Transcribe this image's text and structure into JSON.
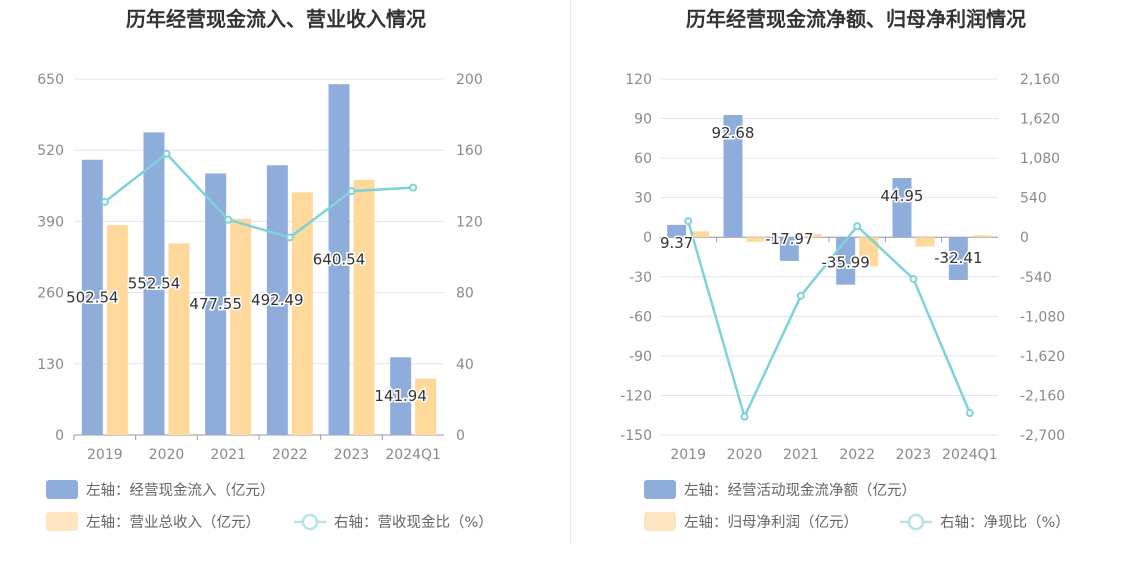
{
  "colors": {
    "bar_primary": "#8eaddb",
    "bar_secondary": "#fed99b",
    "line": "#7fd3d8",
    "grid": "#e3e6ef",
    "axis_text": "#8a8a8a",
    "title": "#333333",
    "legend_text": "#666666",
    "label_text": "#333333"
  },
  "chart_data": [
    {
      "type": "bar",
      "title": "历年经营现金流入、营业收入情况",
      "categories": [
        "2019",
        "2020",
        "2021",
        "2022",
        "2023",
        "2024Q1"
      ],
      "left_axis": {
        "min": 0,
        "max": 650,
        "ticks": [
          "650",
          "520",
          "390",
          "260",
          "130",
          "0"
        ]
      },
      "right_axis": {
        "min": 0,
        "max": 200,
        "ticks": [
          "200",
          "160",
          "120",
          "80",
          "40",
          "0"
        ]
      },
      "series": [
        {
          "name": "左轴：经营现金流入（亿元）",
          "kind": "bar",
          "axis": "left",
          "values": [
            502.54,
            552.54,
            477.55,
            492.49,
            640.54,
            141.94
          ],
          "labels": [
            "502.54",
            "552.54",
            "477.55",
            "492.49",
            "640.54",
            "141.94"
          ]
        },
        {
          "name": "左轴：营业总收入（亿元）",
          "kind": "bar",
          "axis": "left",
          "values": [
            383,
            350,
            395,
            443,
            466,
            103
          ]
        },
        {
          "name": "右轴：营收现金比（%）",
          "kind": "line",
          "axis": "right",
          "values": [
            131,
            158,
            121,
            111,
            137,
            139
          ]
        }
      ]
    },
    {
      "type": "bar",
      "title": "历年经营现金流净额、归母净利润情况",
      "categories": [
        "2019",
        "2020",
        "2021",
        "2022",
        "2023",
        "2024Q1"
      ],
      "left_axis": {
        "min": -150,
        "max": 120,
        "ticks": [
          "120",
          "90",
          "60",
          "30",
          "0",
          "-30",
          "-60",
          "-90",
          "-120",
          "-150"
        ]
      },
      "right_axis": {
        "min": -2700,
        "max": 2160,
        "ticks": [
          "2,160",
          "1,620",
          "1,080",
          "540",
          "0",
          "-540",
          "-1,080",
          "-1,620",
          "-2,160",
          "-2,700"
        ]
      },
      "series": [
        {
          "name": "左轴：经营活动现金流净额（亿元）",
          "kind": "bar",
          "axis": "left",
          "values": [
            9.37,
            92.68,
            -17.97,
            -35.99,
            44.95,
            -32.41
          ],
          "labels": [
            "9.37",
            "92.68",
            "-17.97",
            "-35.99",
            "44.95",
            "-32.41"
          ]
        },
        {
          "name": "左轴：归母净利润（亿元）",
          "kind": "bar",
          "axis": "left",
          "values": [
            4.5,
            -3.5,
            2.5,
            -22,
            -7,
            1.5
          ]
        },
        {
          "name": "右轴：净现比（%）",
          "kind": "line",
          "axis": "right",
          "values": [
            220,
            -2450,
            -800,
            150,
            -570,
            -2400
          ]
        }
      ]
    }
  ]
}
